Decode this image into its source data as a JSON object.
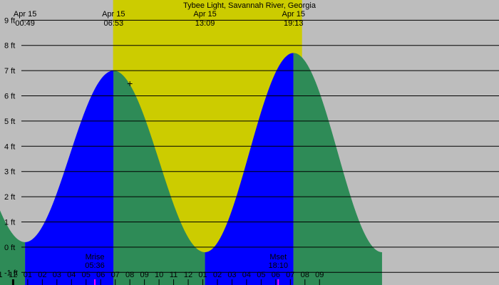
{
  "chart_data": {
    "type": "area",
    "title": "Tybee Light, Savannah River, Georgia",
    "xlabel": "",
    "ylabel": "",
    "units": "ft",
    "grid": true,
    "legend": "none",
    "x_range_hours": [
      -0.9,
      33.3
    ],
    "ylim": [
      -1.5,
      9.8
    ],
    "y_ticks": [
      -1,
      0,
      1,
      2,
      3,
      4,
      5,
      6,
      7,
      8,
      9
    ],
    "y_tick_labels": [
      "-1 ft",
      "0 ft",
      "1 ft",
      "2 ft",
      "3 ft",
      "4 ft",
      "5 ft",
      "6 ft",
      "7 ft",
      "8 ft",
      "9 ft"
    ],
    "x_ticks": [
      {
        "hour": -1,
        "label": "11"
      },
      {
        "hour": 0,
        "label": "12"
      },
      {
        "hour": 1,
        "label": "01"
      },
      {
        "hour": 2,
        "label": "02"
      },
      {
        "hour": 3,
        "label": "03"
      },
      {
        "hour": 4,
        "label": "04"
      },
      {
        "hour": 5,
        "label": "05"
      },
      {
        "hour": 6,
        "label": "06"
      },
      {
        "hour": 7,
        "label": "07"
      },
      {
        "hour": 8,
        "label": "08"
      },
      {
        "hour": 9,
        "label": "09"
      },
      {
        "hour": 10,
        "label": "10"
      },
      {
        "hour": 11,
        "label": "11"
      },
      {
        "hour": 12,
        "label": "12"
      },
      {
        "hour": 13,
        "label": "01"
      },
      {
        "hour": 14,
        "label": "02"
      },
      {
        "hour": 15,
        "label": "03"
      },
      {
        "hour": 16,
        "label": "04"
      },
      {
        "hour": 17,
        "label": "05"
      },
      {
        "hour": 18,
        "label": "06"
      },
      {
        "hour": 19,
        "label": "07"
      },
      {
        "hour": 20,
        "label": "08"
      },
      {
        "hour": 21,
        "label": "09"
      }
    ],
    "tide_extremes": [
      {
        "hour": 0.817,
        "date_label": "Apr 15",
        "time_label": "00:49",
        "height_ft": 0.2,
        "kind": "low"
      },
      {
        "hour": 6.883,
        "date_label": "Apr 15",
        "time_label": "06:53",
        "height_ft": 7.0,
        "kind": "high"
      },
      {
        "hour": 13.15,
        "date_label": "Apr 15",
        "time_label": "13:09",
        "height_ft": -0.2,
        "kind": "low"
      },
      {
        "hour": 19.217,
        "date_label": "Apr 15",
        "time_label": "19:13",
        "height_ft": 7.7,
        "kind": "high"
      }
    ],
    "daylight_hours": [
      6.85,
      19.8
    ],
    "moon_events": [
      {
        "name": "Mrise",
        "time_label": "05:36",
        "hour": 5.6
      },
      {
        "name": "Mset",
        "time_label": "18:10",
        "hour": 18.167
      }
    ],
    "current_marker": {
      "hour": 8.0,
      "height_ft": 6.5,
      "symbol": "+"
    },
    "colors": {
      "background": "#bdbdbd",
      "daylight": "#cccc00",
      "rising": "#0000ff",
      "falling": "#2e8b57",
      "grid": "#000000",
      "moon_tick": "#ff00ff"
    }
  }
}
